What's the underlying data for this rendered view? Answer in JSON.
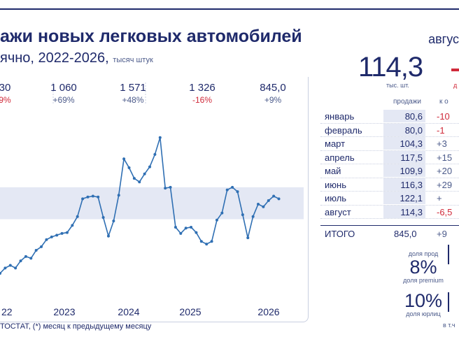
{
  "header": {
    "title": "ажи новых легковых автомобилей",
    "subtitle": "ячно, 2022-2026,",
    "units": "тысяч штук"
  },
  "year_totals": [
    {
      "value": "30",
      "change": "9%",
      "tone": "neg"
    },
    {
      "value": "1 060",
      "change": "+69%",
      "tone": "pos"
    },
    {
      "value": "1 571",
      "change": "+48%",
      "tone": "pos"
    },
    {
      "value": "1 326",
      "change": "-16%",
      "tone": "neg"
    },
    {
      "value": "845,0",
      "change": "+9%",
      "tone": "pos"
    }
  ],
  "summary": {
    "month_label": "авгус",
    "value": "114,3",
    "value_unit": "тыс. шт.",
    "change_unit": "д"
  },
  "table": {
    "col_sales": "продажи",
    "col_change": "к о",
    "rows": [
      {
        "month": "январь",
        "sales": "80,6",
        "change": "-10",
        "tone": "neg"
      },
      {
        "month": "февраль",
        "sales": "80,0",
        "change": "-1",
        "tone": "neg"
      },
      {
        "month": "март",
        "sales": "104,3",
        "change": "+3",
        "tone": "pos"
      },
      {
        "month": "апрель",
        "sales": "117,5",
        "change": "+15",
        "tone": "pos"
      },
      {
        "month": "май",
        "sales": "109,9",
        "change": "+20",
        "tone": "pos"
      },
      {
        "month": "июнь",
        "sales": "116,3",
        "change": "+29",
        "tone": "pos"
      },
      {
        "month": "июль",
        "sales": "122,1",
        "change": "+",
        "tone": "pos"
      },
      {
        "month": "август",
        "sales": "114,3",
        "change": "-6,5",
        "tone": "neg"
      }
    ],
    "total_label": "ИТОГО",
    "total_value": "845,0",
    "total_change": "+9"
  },
  "shares": {
    "top_label": "доля прод",
    "premium_value": "8%",
    "premium_label": "доля premium",
    "corporate_value": "10%",
    "corporate_label": "доля юрлиц",
    "note": "в т.ч"
  },
  "source": "ТОСТАТ, (*) месяц к предыдущему месяцу",
  "chart_data": {
    "type": "line",
    "x_tick_labels": [
      "22",
      "2023",
      "2024",
      "2025",
      "2026"
    ],
    "highlight_band": [
      91,
      127
    ],
    "ylim": [
      15,
      208
    ],
    "series": [
      {
        "values": [
          30,
          36,
          39,
          36,
          44,
          49,
          47,
          56,
          60,
          68,
          71,
          73,
          75,
          76,
          84,
          94,
          114,
          116,
          117,
          116,
          93,
          72,
          89,
          118,
          159,
          149,
          137,
          133,
          142,
          150,
          164,
          183,
          126,
          127,
          82,
          75,
          81,
          82,
          76,
          66,
          63,
          66,
          90,
          98,
          124,
          127,
          122,
          96,
          70,
          94,
          108,
          105,
          112,
          117,
          114
        ]
      }
    ],
    "line_color": "#2f6fb3",
    "band_color": "#e4e8f4"
  }
}
